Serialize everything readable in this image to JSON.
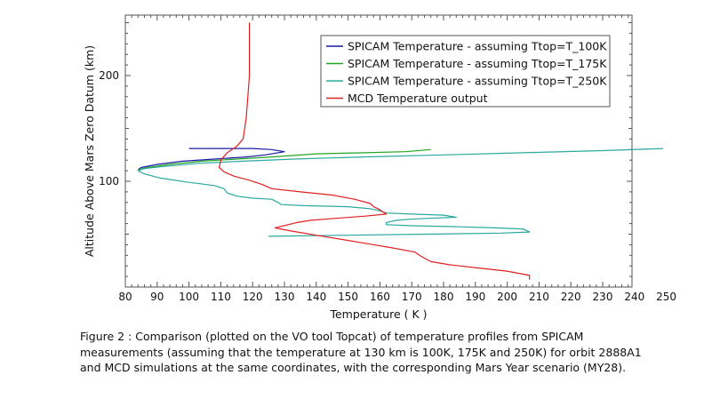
{
  "chart_data": {
    "type": "line",
    "xlabel": "Temperature ( K )",
    "ylabel": "Altitude Above Mars Zero Datum (km)",
    "xlim": [
      80,
      252
    ],
    "ylim": [
      0,
      255
    ],
    "x_ticks": [
      80,
      90,
      100,
      110,
      120,
      130,
      140,
      150,
      160,
      170,
      180,
      190,
      200,
      210,
      220,
      230,
      240,
      250
    ],
    "y_ticks": [
      100,
      200
    ],
    "grid": false,
    "legend_position": "top-right",
    "series": [
      {
        "name": "SPICAM Temperature - assuming Ttop=T_100K",
        "color": "#1a1aa6",
        "points": [
          [
            100,
            131
          ],
          [
            110,
            131
          ],
          [
            120,
            131
          ],
          [
            126,
            130
          ],
          [
            130,
            128
          ],
          [
            124,
            125
          ],
          [
            118,
            123
          ],
          [
            108,
            121
          ],
          [
            98,
            119
          ],
          [
            90,
            116
          ],
          [
            85,
            113
          ],
          [
            84,
            111
          ]
        ]
      },
      {
        "name": "SPICAM Temperature - assuming Ttop=T_175K",
        "color": "#22a522",
        "points": [
          [
            176,
            130
          ],
          [
            168,
            128
          ],
          [
            155,
            127
          ],
          [
            140,
            126
          ],
          [
            126,
            123
          ],
          [
            115,
            121
          ],
          [
            104,
            119
          ],
          [
            94,
            116
          ],
          [
            87,
            113
          ],
          [
            84,
            111
          ]
        ]
      },
      {
        "name": "SPICAM Temperature - assuming Ttop=T_250K",
        "color": "#2aa8a0",
        "points": [
          [
            249,
            131
          ],
          [
            230,
            129
          ],
          [
            205,
            127
          ],
          [
            180,
            125
          ],
          [
            155,
            123
          ],
          [
            133,
            121
          ],
          [
            117,
            119
          ],
          [
            103,
            117
          ],
          [
            92,
            114
          ],
          [
            86,
            112
          ],
          [
            84,
            110
          ],
          [
            86,
            107
          ],
          [
            91,
            103
          ],
          [
            100,
            99
          ],
          [
            108,
            96
          ],
          [
            111,
            93
          ],
          [
            112,
            89
          ],
          [
            115,
            86
          ],
          [
            120,
            84
          ],
          [
            126,
            83
          ],
          [
            128,
            80
          ],
          [
            129,
            78
          ],
          [
            136,
            77
          ],
          [
            150,
            76
          ],
          [
            157,
            74
          ],
          [
            160,
            72
          ],
          [
            162,
            70
          ],
          [
            170,
            69
          ],
          [
            180,
            68
          ],
          [
            184,
            66
          ],
          [
            175,
            65
          ],
          [
            169,
            64
          ],
          [
            165,
            63
          ],
          [
            162,
            61
          ],
          [
            162,
            59
          ],
          [
            170,
            58
          ],
          [
            185,
            57
          ],
          [
            196,
            56
          ],
          [
            205,
            55
          ],
          [
            207,
            52
          ],
          [
            198,
            51
          ],
          [
            175,
            50
          ],
          [
            150,
            49
          ],
          [
            125,
            48
          ]
        ]
      },
      {
        "name": "MCD Temperature output",
        "color": "#e02020",
        "points": [
          [
            119,
            250
          ],
          [
            119,
            240
          ],
          [
            119,
            220
          ],
          [
            119,
            200
          ],
          [
            118.5,
            180
          ],
          [
            118,
            160
          ],
          [
            117.5,
            150
          ],
          [
            117,
            140
          ],
          [
            115,
            133
          ],
          [
            112,
            127
          ],
          [
            110,
            120
          ],
          [
            109.5,
            113
          ],
          [
            111,
            109
          ],
          [
            114,
            105
          ],
          [
            119,
            101
          ],
          [
            123,
            97
          ],
          [
            126,
            93
          ],
          [
            135,
            90
          ],
          [
            145,
            87
          ],
          [
            152,
            83
          ],
          [
            157,
            79
          ],
          [
            158,
            76
          ],
          [
            160,
            73
          ],
          [
            162,
            69
          ],
          [
            155,
            67
          ],
          [
            146,
            65
          ],
          [
            138,
            63
          ],
          [
            134,
            61
          ],
          [
            127,
            56
          ],
          [
            132,
            53
          ],
          [
            140,
            49
          ],
          [
            148,
            45
          ],
          [
            156,
            41
          ],
          [
            164,
            37
          ],
          [
            171,
            33
          ],
          [
            173,
            29
          ],
          [
            176,
            24
          ],
          [
            182,
            21
          ],
          [
            191,
            18
          ],
          [
            200,
            15
          ],
          [
            207,
            11
          ],
          [
            207,
            7
          ]
        ]
      }
    ]
  },
  "caption": "Figure 2 : Comparison (plotted on the VO tool Topcat) of temperature profiles from SPICAM measurements (assuming that the temperature at 130 km is 100K, 175K and  250K) for orbit 2888A1 and MCD simulations at the same coordinates, with the corresponding Mars Year scenario (MY28)."
}
